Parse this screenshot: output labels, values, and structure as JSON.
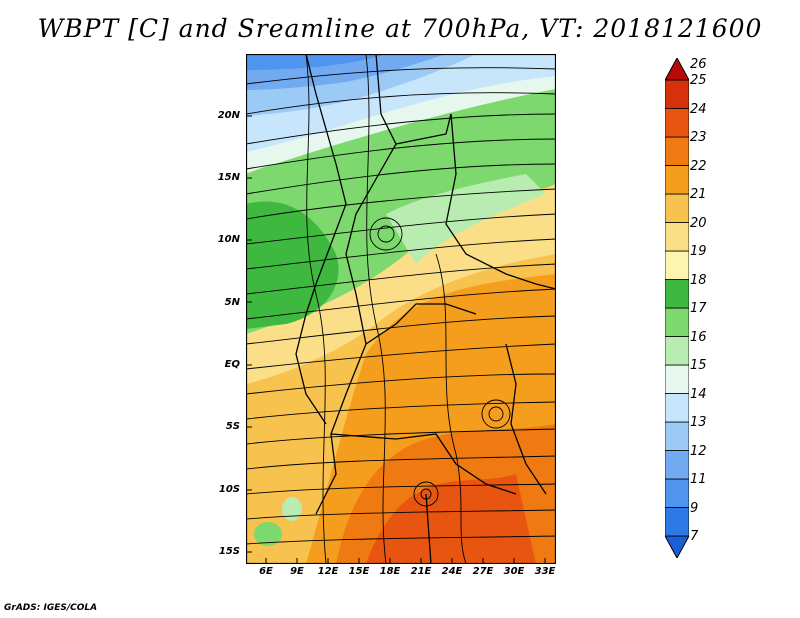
{
  "title": "WBPT [C] and Sreamline at 700hPa, VT: 2018121600",
  "footer": "GrADS: IGES/COLA",
  "lat_labels": [
    "20N",
    "15N",
    "10N",
    "5N",
    "EQ",
    "5S",
    "10S",
    "15S"
  ],
  "lon_labels": [
    "6E",
    "9E",
    "12E",
    "15E",
    "18E",
    "21E",
    "24E",
    "27E",
    "30E",
    "33E"
  ],
  "colorbar": {
    "labels": [
      "7",
      "9",
      "11",
      "12",
      "13",
      "14",
      "15",
      "16",
      "17",
      "18",
      "19",
      "20",
      "21",
      "22",
      "23",
      "24",
      "25",
      "26"
    ],
    "colors": [
      "#1a5fd8",
      "#2d7ae6",
      "#4f94ee",
      "#72aaf2",
      "#9ccaf7",
      "#c8e6fb",
      "#e6f8ee",
      "#b9ecb0",
      "#7dd86e",
      "#3fb83f",
      "#fbf5b0",
      "#fbdf88",
      "#f7c24e",
      "#f59d1c",
      "#f07a12",
      "#e85510",
      "#d6300c",
      "#b80a06"
    ]
  }
}
